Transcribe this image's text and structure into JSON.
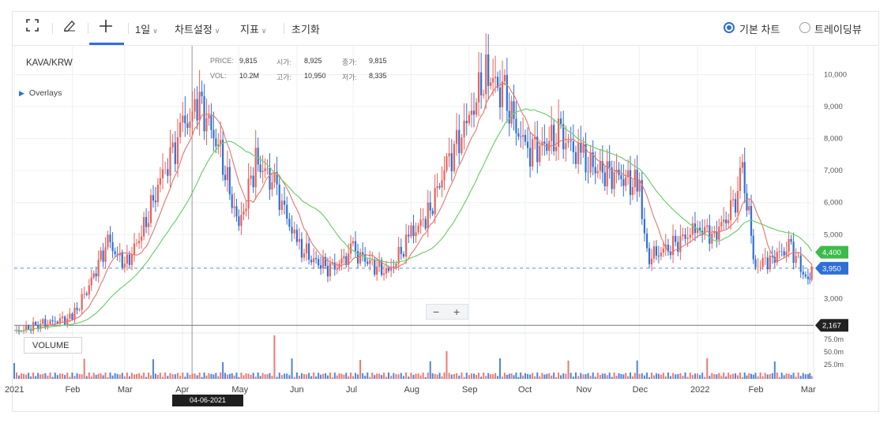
{
  "toolbar": {
    "fullscreen_icon": "fullscreen-icon",
    "draw_icon": "pencil-icon",
    "crosshair_icon": "crosshair-icon",
    "interval": "1일",
    "chart_settings": "차트설정",
    "indicators": "지표",
    "reset": "초기화",
    "basic_chart": "기본 차트",
    "trading_view": "트레이딩뷰",
    "basic_chart_selected": true
  },
  "pair": "KAVA/KRW",
  "overlays": "Overlays",
  "info": {
    "price_label": "PRICE:",
    "price": "9,815",
    "open_label": "시가:",
    "open": "8,925",
    "close_label": "종가:",
    "close": "9,815",
    "vol_label": "VOL:",
    "vol": "10.2M",
    "high_label": "고가:",
    "high": "10,950",
    "low_label": "저가:",
    "low": "8,335"
  },
  "volume_label": "VOLUME",
  "zoom": {
    "minus": "−",
    "plus": "+"
  },
  "hover_date": "04-06-2021",
  "colors": {
    "up": "#e8625a",
    "down": "#2f6fd6",
    "ma_short": "#e8746a",
    "ma_long": "#6fcf6f",
    "accent": "#2f6fd6",
    "price_tag": "#2f6fd6",
    "ma_tag": "#3dbb4a",
    "level_tag": "#222222"
  },
  "chart_data": {
    "type": "line",
    "title": "KAVA/KRW",
    "x_tick_labels": [
      "2021",
      "Feb",
      "Mar",
      "Apr",
      "May",
      "Jun",
      "Jul",
      "Aug",
      "Sep",
      "Oct",
      "Nov",
      "Dec",
      "2022",
      "Feb",
      "Mar"
    ],
    "y_tick_labels": [
      "10,000",
      "9,000",
      "8,000",
      "7,000",
      "6,000",
      "5,000",
      "4,000",
      "3,000"
    ],
    "ylim": [
      1950,
      10900
    ],
    "volume_tick_labels": [
      "75.0m",
      "50.0m",
      "25.0m"
    ],
    "current_price": 3950,
    "current_price_label": "3,950",
    "ma_long_value": 4400,
    "ma_long_label": "4,400",
    "horizontal_level": 2167,
    "horizontal_level_label": "2,167",
    "x": [
      "2021-01-01",
      "2021-01-15",
      "2021-02-01",
      "2021-02-10",
      "2021-02-20",
      "2021-03-01",
      "2021-03-10",
      "2021-03-20",
      "2021-04-01",
      "2021-04-10",
      "2021-04-20",
      "2021-05-01",
      "2021-05-10",
      "2021-05-20",
      "2021-06-01",
      "2021-06-10",
      "2021-06-20",
      "2021-07-01",
      "2021-07-10",
      "2021-07-20",
      "2021-08-01",
      "2021-08-10",
      "2021-08-20",
      "2021-09-01",
      "2021-09-10",
      "2021-09-20",
      "2021-10-01",
      "2021-10-10",
      "2021-10-20",
      "2021-11-01",
      "2021-11-10",
      "2021-11-20",
      "2021-12-01",
      "2021-12-05",
      "2021-12-15",
      "2022-01-01",
      "2022-01-10",
      "2022-01-20",
      "2022-01-25",
      "2022-02-01",
      "2022-02-10",
      "2022-02-20",
      "2022-03-01",
      "2022-03-03"
    ],
    "series": [
      {
        "values": [
          1950,
          2200,
          2400,
          3400,
          4800,
          4000,
          5000,
          6700,
          8300,
          9100,
          7800,
          5200,
          7300,
          6600,
          4700,
          4200,
          3900,
          4500,
          4100,
          3800,
          5000,
          5600,
          7200,
          8600,
          10100,
          9300,
          7600,
          7800,
          8100,
          7300,
          7000,
          6800,
          6500,
          4300,
          4500,
          5200,
          5000,
          5800,
          7000,
          4000,
          4300,
          4600,
          3500,
          4000
        ]
      }
    ]
  }
}
